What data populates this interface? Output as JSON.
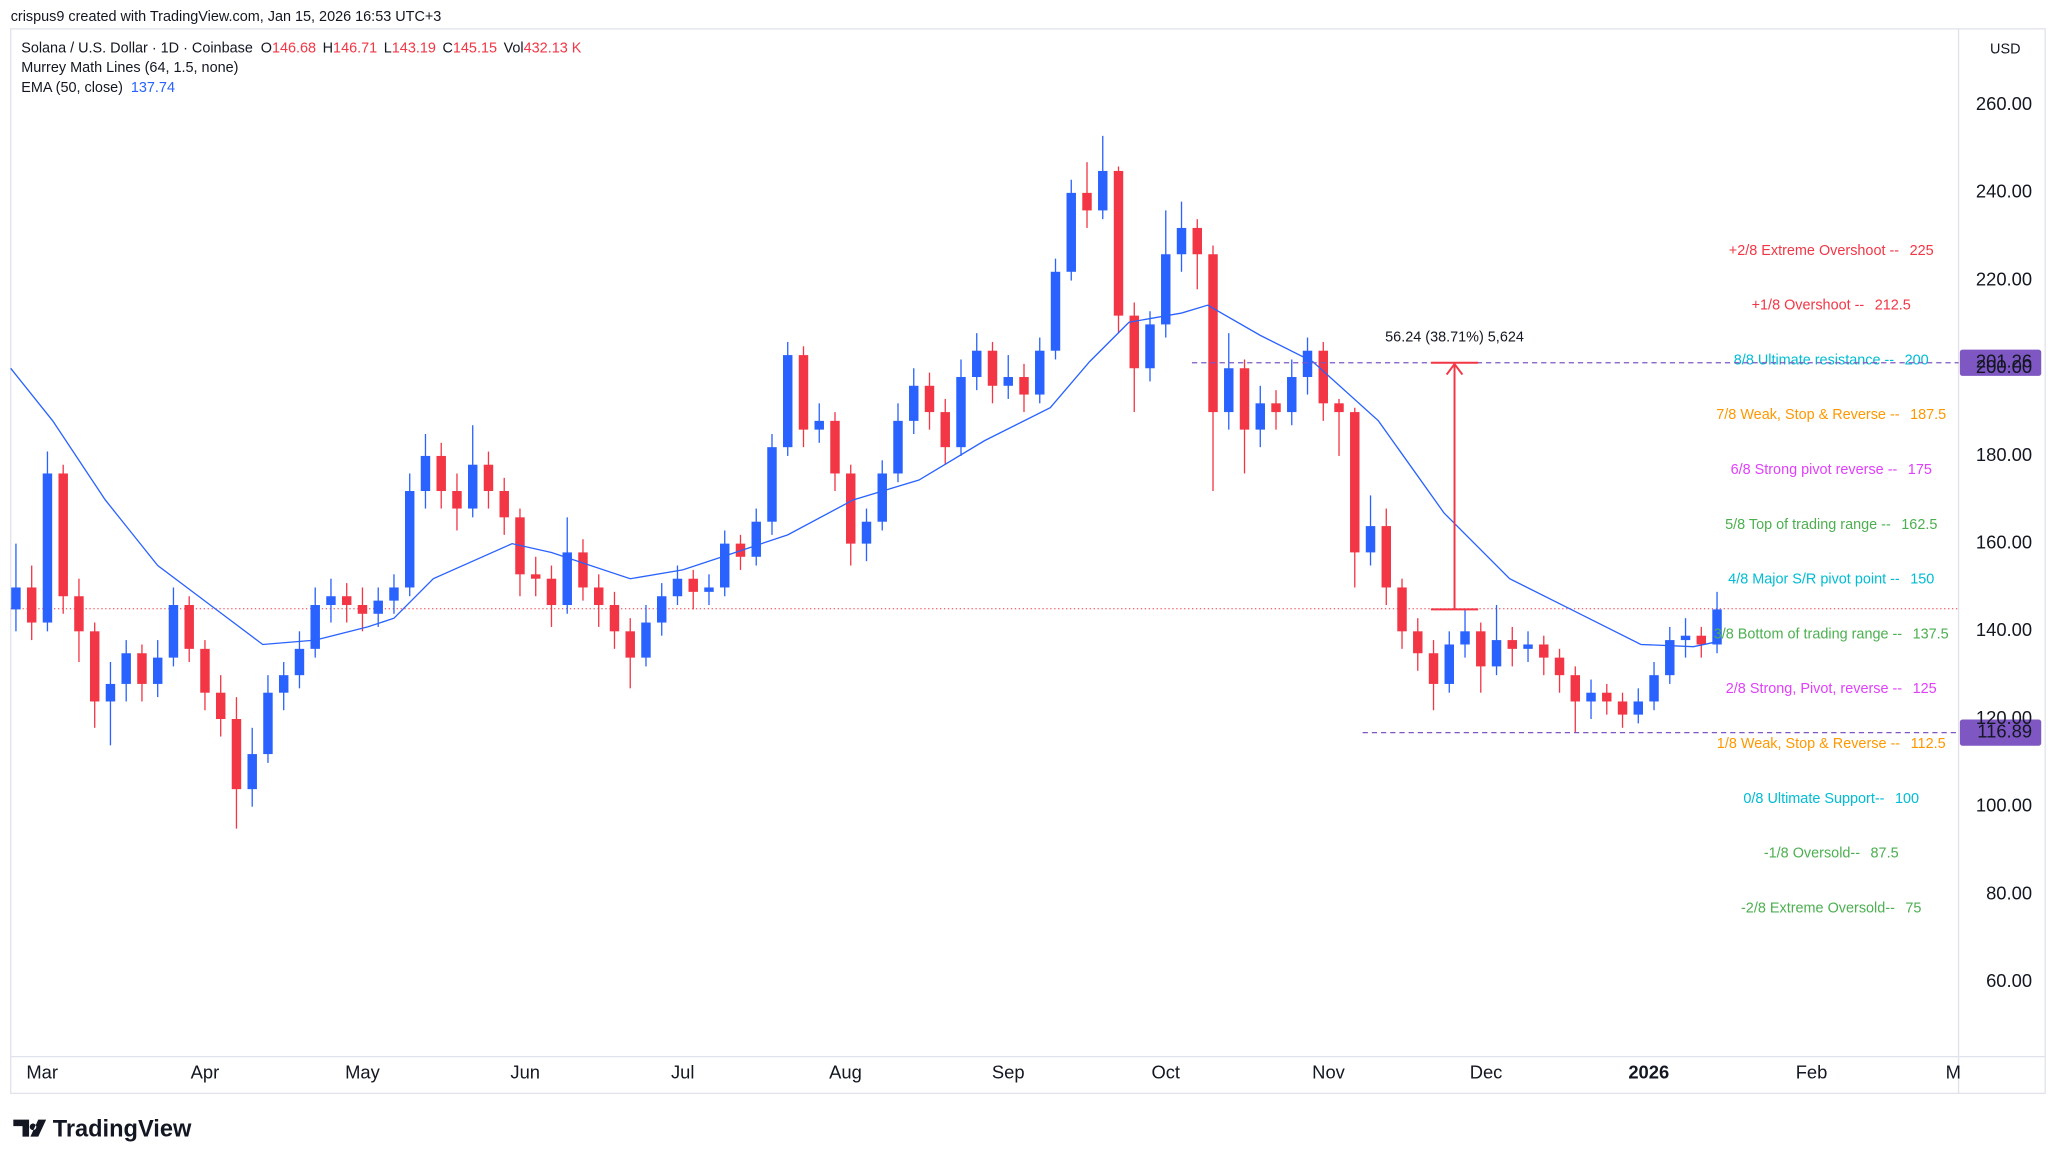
{
  "header": {
    "credit": "crispus9 created with TradingView.com, Jan 15, 2026 16:53 UTC+3"
  },
  "chart_data": {
    "type": "candlestick",
    "symbol": "Solana / U.S. Dollar · 1D · Coinbase",
    "legend": [
      {
        "key": "O",
        "value": 146.68
      },
      {
        "key": "H",
        "value": 146.71
      },
      {
        "key": "L",
        "value": 143.19
      },
      {
        "key": "C",
        "value": 145.15
      },
      {
        "key": "Vol",
        "value": "432.13 K"
      }
    ],
    "indicators": {
      "murrey": "Murrey Math Lines (64, 1.5, none)",
      "ema_name": "EMA (50, close)",
      "ema_value": 137.74
    },
    "currency": "USD",
    "up_color": "#2962ff",
    "down_color": "#f23645",
    "ema_color": "#2962ff",
    "xlim": [
      -6,
      365
    ],
    "ylim": [
      43,
      278
    ],
    "grid": false,
    "xticks": [
      {
        "value": 0,
        "label": "Mar"
      },
      {
        "value": 31,
        "label": "Apr"
      },
      {
        "value": 61,
        "label": "May"
      },
      {
        "value": 92,
        "label": "Jun"
      },
      {
        "value": 122,
        "label": "Jul"
      },
      {
        "value": 153,
        "label": "Aug"
      },
      {
        "value": 184,
        "label": "Sep"
      },
      {
        "value": 214,
        "label": "Oct"
      },
      {
        "value": 245,
        "label": "Nov"
      },
      {
        "value": 275,
        "label": "Dec"
      },
      {
        "value": 306,
        "label": "2026"
      },
      {
        "value": 337,
        "label": "Feb"
      },
      {
        "value": 364,
        "label": "M"
      }
    ],
    "yticks": [
      {
        "value": 60,
        "label": "60.00"
      },
      {
        "value": 80,
        "label": "80.00"
      },
      {
        "value": 100,
        "label": "100.00"
      },
      {
        "value": 120,
        "label": "120.00"
      },
      {
        "value": 140,
        "label": "140.00"
      },
      {
        "value": 160,
        "label": "160.00"
      },
      {
        "value": 180,
        "label": "180.00"
      },
      {
        "value": 200,
        "label": "200.00"
      },
      {
        "value": 220,
        "label": "220.00"
      },
      {
        "value": 240,
        "label": "240.00"
      },
      {
        "value": 260,
        "label": "260.00"
      }
    ],
    "x": [
      -5,
      -2,
      1,
      4,
      7,
      10,
      13,
      16,
      19,
      22,
      25,
      28,
      31,
      34,
      37,
      40,
      43,
      46,
      49,
      52,
      55,
      58,
      61,
      64,
      67,
      70,
      73,
      76,
      79,
      82,
      85,
      88,
      91,
      94,
      97,
      100,
      103,
      106,
      109,
      112,
      115,
      118,
      121,
      124,
      127,
      130,
      133,
      136,
      139,
      142,
      145,
      148,
      151,
      154,
      157,
      160,
      163,
      166,
      169,
      172,
      175,
      178,
      181,
      184,
      187,
      190,
      193,
      196,
      199,
      202,
      205,
      208,
      211,
      214,
      217,
      220,
      223,
      226,
      229,
      232,
      235,
      238,
      241,
      244,
      247,
      250,
      253,
      256,
      259,
      262,
      265,
      268,
      271,
      274,
      277,
      280,
      283,
      286,
      289,
      292,
      295,
      298,
      301,
      304,
      307,
      310,
      313,
      316,
      319
    ],
    "open": [
      145,
      150,
      142,
      176,
      148,
      140,
      124,
      128,
      135,
      128,
      134,
      146,
      136,
      126,
      120,
      104,
      112,
      126,
      130,
      136,
      146,
      148,
      146,
      144,
      147,
      150,
      172,
      180,
      172,
      168,
      178,
      172,
      166,
      153,
      152,
      146,
      158,
      150,
      146,
      140,
      134,
      142,
      148,
      152,
      149,
      150,
      160,
      157,
      165,
      182,
      203,
      186,
      188,
      176,
      160,
      165,
      176,
      188,
      196,
      190,
      182,
      198,
      204,
      196,
      198,
      194,
      204,
      222,
      240,
      236,
      245,
      212,
      200,
      210,
      226,
      232,
      226,
      190,
      200,
      186,
      192,
      190,
      198,
      204,
      192,
      190,
      158,
      164,
      150,
      140,
      135,
      128,
      137,
      140,
      132,
      138,
      136,
      137,
      134,
      130,
      124,
      126,
      124,
      121,
      124,
      130,
      138,
      139,
      137
    ],
    "high": [
      160,
      155,
      181,
      178,
      152,
      142,
      133,
      138,
      137,
      138,
      150,
      148,
      138,
      130,
      125,
      118,
      130,
      133,
      140,
      150,
      152,
      151,
      150,
      150,
      153,
      176,
      185,
      183,
      176,
      187,
      181,
      175,
      168,
      157,
      155,
      166,
      161,
      153,
      149,
      143,
      146,
      151,
      155,
      154,
      153,
      163,
      162,
      168,
      185,
      206,
      205,
      192,
      190,
      178,
      168,
      179,
      192,
      200,
      199,
      193,
      202,
      208,
      206,
      203,
      201,
      207,
      225,
      243,
      247,
      253,
      246,
      215,
      213,
      236,
      238,
      234,
      228,
      208,
      202,
      196,
      195,
      202,
      207,
      206,
      193,
      191,
      171,
      168,
      152,
      143,
      138,
      140,
      145,
      142,
      146,
      141,
      140,
      139,
      136,
      132,
      129,
      128,
      126,
      127,
      133,
      141,
      143,
      141,
      149
    ],
    "low": [
      140,
      138,
      140,
      144,
      133,
      118,
      114,
      124,
      124,
      125,
      132,
      133,
      122,
      116,
      95,
      100,
      110,
      122,
      127,
      134,
      142,
      142,
      140,
      141,
      144,
      148,
      168,
      168,
      163,
      166,
      168,
      162,
      148,
      148,
      141,
      144,
      147,
      141,
      136,
      127,
      132,
      139,
      146,
      145,
      146,
      148,
      154,
      155,
      162,
      180,
      182,
      183,
      172,
      155,
      156,
      163,
      174,
      185,
      186,
      178,
      180,
      195,
      192,
      193,
      190,
      192,
      202,
      220,
      232,
      234,
      208,
      190,
      197,
      207,
      222,
      218,
      172,
      186,
      176,
      182,
      186,
      187,
      194,
      188,
      180,
      150,
      155,
      146,
      136,
      131,
      122,
      126,
      134,
      126,
      130,
      132,
      133,
      130,
      126,
      117,
      120,
      121,
      118,
      119,
      122,
      128,
      134,
      134,
      135
    ],
    "close": [
      150,
      142,
      176,
      148,
      140,
      124,
      128,
      135,
      128,
      134,
      146,
      136,
      126,
      120,
      104,
      112,
      126,
      130,
      136,
      146,
      148,
      146,
      144,
      147,
      150,
      172,
      180,
      172,
      168,
      178,
      172,
      166,
      153,
      152,
      146,
      158,
      150,
      146,
      140,
      134,
      142,
      148,
      152,
      149,
      150,
      160,
      157,
      165,
      182,
      203,
      186,
      188,
      176,
      160,
      165,
      176,
      188,
      196,
      190,
      182,
      198,
      204,
      196,
      198,
      194,
      204,
      222,
      240,
      236,
      245,
      212,
      200,
      210,
      226,
      232,
      226,
      190,
      200,
      186,
      192,
      190,
      198,
      204,
      192,
      190,
      158,
      164,
      150,
      140,
      135,
      128,
      137,
      140,
      132,
      138,
      136,
      137,
      134,
      130,
      124,
      126,
      124,
      121,
      124,
      130,
      138,
      139,
      137,
      145
    ],
    "ema": {
      "x": [
        -6,
        2,
        12,
        22,
        32,
        42,
        52,
        62,
        67,
        74.5,
        89.5,
        97,
        112,
        122,
        132,
        142,
        154.5,
        167,
        179.5,
        192,
        199.5,
        207,
        217,
        222,
        232,
        242,
        254.5,
        267,
        279.5,
        292,
        304.5,
        314.5,
        319.5
      ],
      "values": [
        200,
        188,
        170,
        155,
        146,
        137,
        138,
        141,
        143,
        152,
        160,
        158,
        152,
        154,
        158,
        162,
        170,
        174.5,
        183.5,
        191,
        201.5,
        210.5,
        212.6,
        214.4,
        207.5,
        201.5,
        188,
        167,
        152,
        144.5,
        137,
        136.5,
        137.74
      ]
    },
    "murrey": [
      {
        "label": "+2/8 Extreme Overshoot --",
        "value": 225,
        "color": "#f23645"
      },
      {
        "label": "+1/8 Overshoot --",
        "value": 212.5,
        "color": "#f23645"
      },
      {
        "label": "8/8 Ultimate resistance --",
        "value": 200,
        "color": "#00bcd4"
      },
      {
        "label": "7/8 Weak, Stop & Reverse --",
        "value": 187.5,
        "color": "#ff9800"
      },
      {
        "label": "6/8 Strong pivot reverse --",
        "value": 175,
        "color": "#e040fb"
      },
      {
        "label": "5/8 Top of trading range --",
        "value": 162.5,
        "color": "#4caf50"
      },
      {
        "label": "4/8 Major S/R pivot point --",
        "value": 150,
        "color": "#00bcd4"
      },
      {
        "label": "3/8 Bottom of trading range --",
        "value": 137.5,
        "color": "#4caf50"
      },
      {
        "label": "2/8 Strong, Pivot, reverse --",
        "value": 125,
        "color": "#e040fb"
      },
      {
        "label": "1/8 Weak, Stop & Reverse --",
        "value": 112.5,
        "color": "#ff9800"
      },
      {
        "label": "0/8 Ultimate Support--",
        "value": 100,
        "color": "#00bcd4"
      },
      {
        "label": "-1/8 Oversold--",
        "value": 87.5,
        "color": "#4caf50"
      },
      {
        "label": "-2/8 Extreme Oversold--",
        "value": 75,
        "color": "#4caf50"
      }
    ],
    "hlines": [
      {
        "value": 201.26,
        "from_x": 219
      },
      {
        "value": 116.89,
        "from_x": 251.5
      }
    ],
    "hline_color": "#7e57c2",
    "measure": {
      "label": "56.24 (38.71%) 5,624",
      "x": 269,
      "low": 145,
      "high": 201.26,
      "color": "#f23645"
    }
  },
  "footer": {
    "brand": "TradingView"
  }
}
